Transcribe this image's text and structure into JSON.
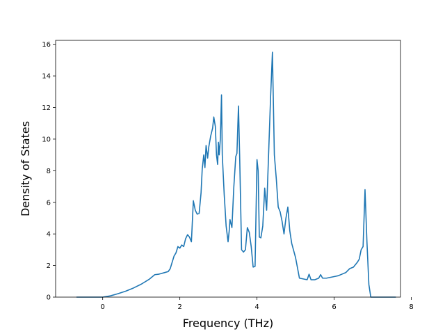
{
  "chart_data": {
    "type": "line",
    "title": "",
    "xlabel": "Frequency (THz)",
    "ylabel": "Density of States",
    "xlim": [
      -1.22,
      7.72
    ],
    "ylim": [
      0,
      16.25
    ],
    "xticks": [
      0,
      2,
      4,
      6,
      8
    ],
    "yticks": [
      0,
      2,
      4,
      6,
      8,
      10,
      12,
      14,
      16
    ],
    "grid": false,
    "legend": "none",
    "series": [
      {
        "color": "#1f77b4",
        "x": [
          -0.68,
          -0.4,
          0.0,
          0.2,
          0.4,
          0.6,
          0.8,
          1.0,
          1.2,
          1.35,
          1.45,
          1.5,
          1.6,
          1.7,
          1.75,
          1.8,
          1.85,
          1.9,
          1.95,
          2.0,
          2.05,
          2.1,
          2.15,
          2.2,
          2.25,
          2.3,
          2.35,
          2.4,
          2.45,
          2.5,
          2.55,
          2.58,
          2.62,
          2.65,
          2.68,
          2.72,
          2.75,
          2.8,
          2.85,
          2.88,
          2.92,
          2.95,
          2.98,
          3.0,
          3.02,
          3.05,
          3.08,
          3.1,
          3.15,
          3.2,
          3.25,
          3.28,
          3.3,
          3.35,
          3.4,
          3.45,
          3.48,
          3.52,
          3.55,
          3.6,
          3.65,
          3.7,
          3.75,
          3.8,
          3.85,
          3.9,
          3.95,
          4.0,
          4.03,
          4.06,
          4.1,
          4.15,
          4.2,
          4.25,
          4.3,
          4.35,
          4.4,
          4.45,
          4.5,
          4.55,
          4.6,
          4.65,
          4.7,
          4.75,
          4.8,
          4.85,
          4.9,
          5.0,
          5.1,
          5.2,
          5.3,
          5.35,
          5.4,
          5.5,
          5.6,
          5.65,
          5.7,
          5.8,
          5.9,
          6.0,
          6.1,
          6.2,
          6.3,
          6.4,
          6.5,
          6.6,
          6.65,
          6.7,
          6.75,
          6.8,
          6.85,
          6.9,
          6.95,
          7.0,
          7.2,
          7.4,
          7.6
        ],
        "y": [
          0.0,
          0.0,
          0.0,
          0.08,
          0.22,
          0.38,
          0.58,
          0.82,
          1.12,
          1.42,
          1.45,
          1.48,
          1.55,
          1.62,
          1.8,
          2.2,
          2.6,
          2.8,
          3.2,
          3.1,
          3.3,
          3.2,
          3.7,
          3.95,
          3.8,
          3.5,
          6.1,
          5.5,
          5.25,
          5.3,
          6.6,
          8.1,
          9.0,
          8.2,
          9.6,
          8.8,
          9.5,
          10.2,
          10.7,
          11.4,
          10.8,
          9.0,
          8.4,
          9.8,
          9.0,
          10.0,
          12.8,
          9.0,
          6.5,
          4.5,
          3.5,
          4.2,
          4.9,
          4.4,
          7.0,
          8.9,
          9.1,
          12.1,
          9.0,
          3.0,
          2.85,
          3.0,
          4.4,
          4.1,
          3.2,
          1.9,
          1.95,
          8.7,
          8.0,
          3.8,
          3.75,
          4.5,
          6.9,
          5.5,
          9.0,
          12.5,
          15.5,
          9.0,
          7.5,
          5.7,
          5.4,
          4.8,
          4.0,
          5.0,
          5.7,
          4.2,
          3.4,
          2.5,
          1.2,
          1.15,
          1.1,
          1.45,
          1.1,
          1.1,
          1.2,
          1.42,
          1.2,
          1.2,
          1.25,
          1.3,
          1.35,
          1.45,
          1.55,
          1.8,
          1.9,
          2.2,
          2.4,
          3.0,
          3.2,
          6.8,
          3.5,
          0.8,
          0.0,
          0.0,
          0.0,
          0.0,
          0.0
        ]
      }
    ]
  }
}
